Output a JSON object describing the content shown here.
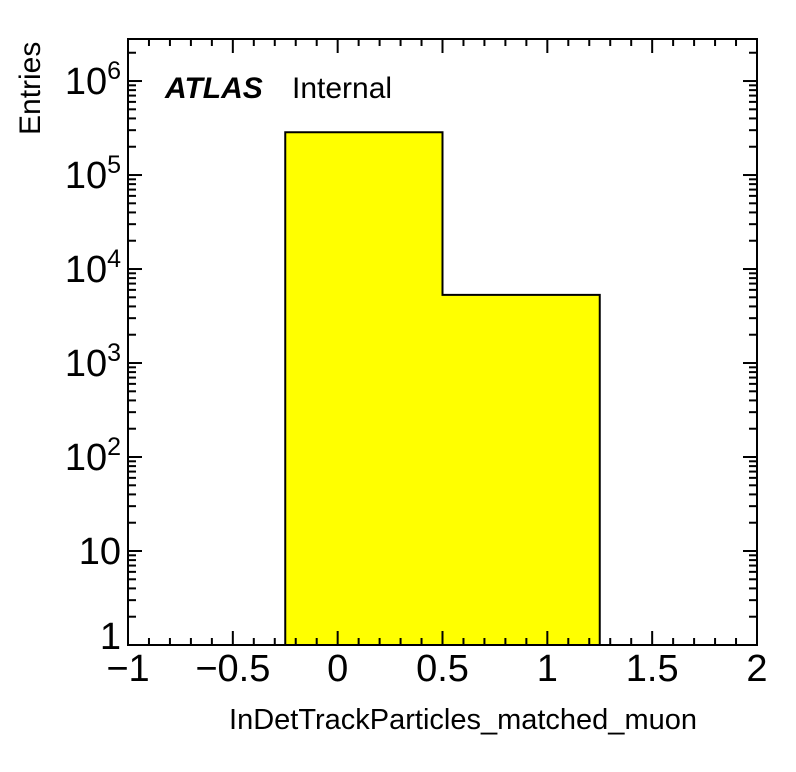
{
  "annotations": {
    "experiment": "ATLAS",
    "status": "Internal"
  },
  "chart_data": {
    "type": "bar",
    "subtype": "step-histogram",
    "title": "",
    "xlabel": "InDetTrackParticles_matched_muon",
    "ylabel": "Entries",
    "x_range": [
      -1,
      2
    ],
    "y_range": [
      1,
      2800000
    ],
    "y_scale": "log",
    "grid": false,
    "legend_position": "none",
    "bin_edges": [
      -1,
      -0.25,
      0.5,
      1.25,
      2
    ],
    "bin_counts": [
      0,
      285000,
      5300,
      0
    ],
    "x_major_ticks": [
      -1,
      -0.5,
      0,
      0.5,
      1,
      1.5,
      2
    ],
    "x_tick_labels": [
      "−1",
      "−0.5",
      "0",
      "0.5",
      "1",
      "1.5",
      "2"
    ],
    "x_minor_step": 0.1,
    "y_tick_labels": [
      "1",
      "10",
      "10^2",
      "10^3",
      "10^4",
      "10^5",
      "10^6"
    ],
    "y_tick_values": [
      1,
      10,
      100,
      1000,
      10000,
      100000,
      1000000
    ],
    "fill_color": "#ffff00",
    "line_color": "#000000",
    "frame_color": "#000000",
    "background_color": "#ffffff"
  }
}
